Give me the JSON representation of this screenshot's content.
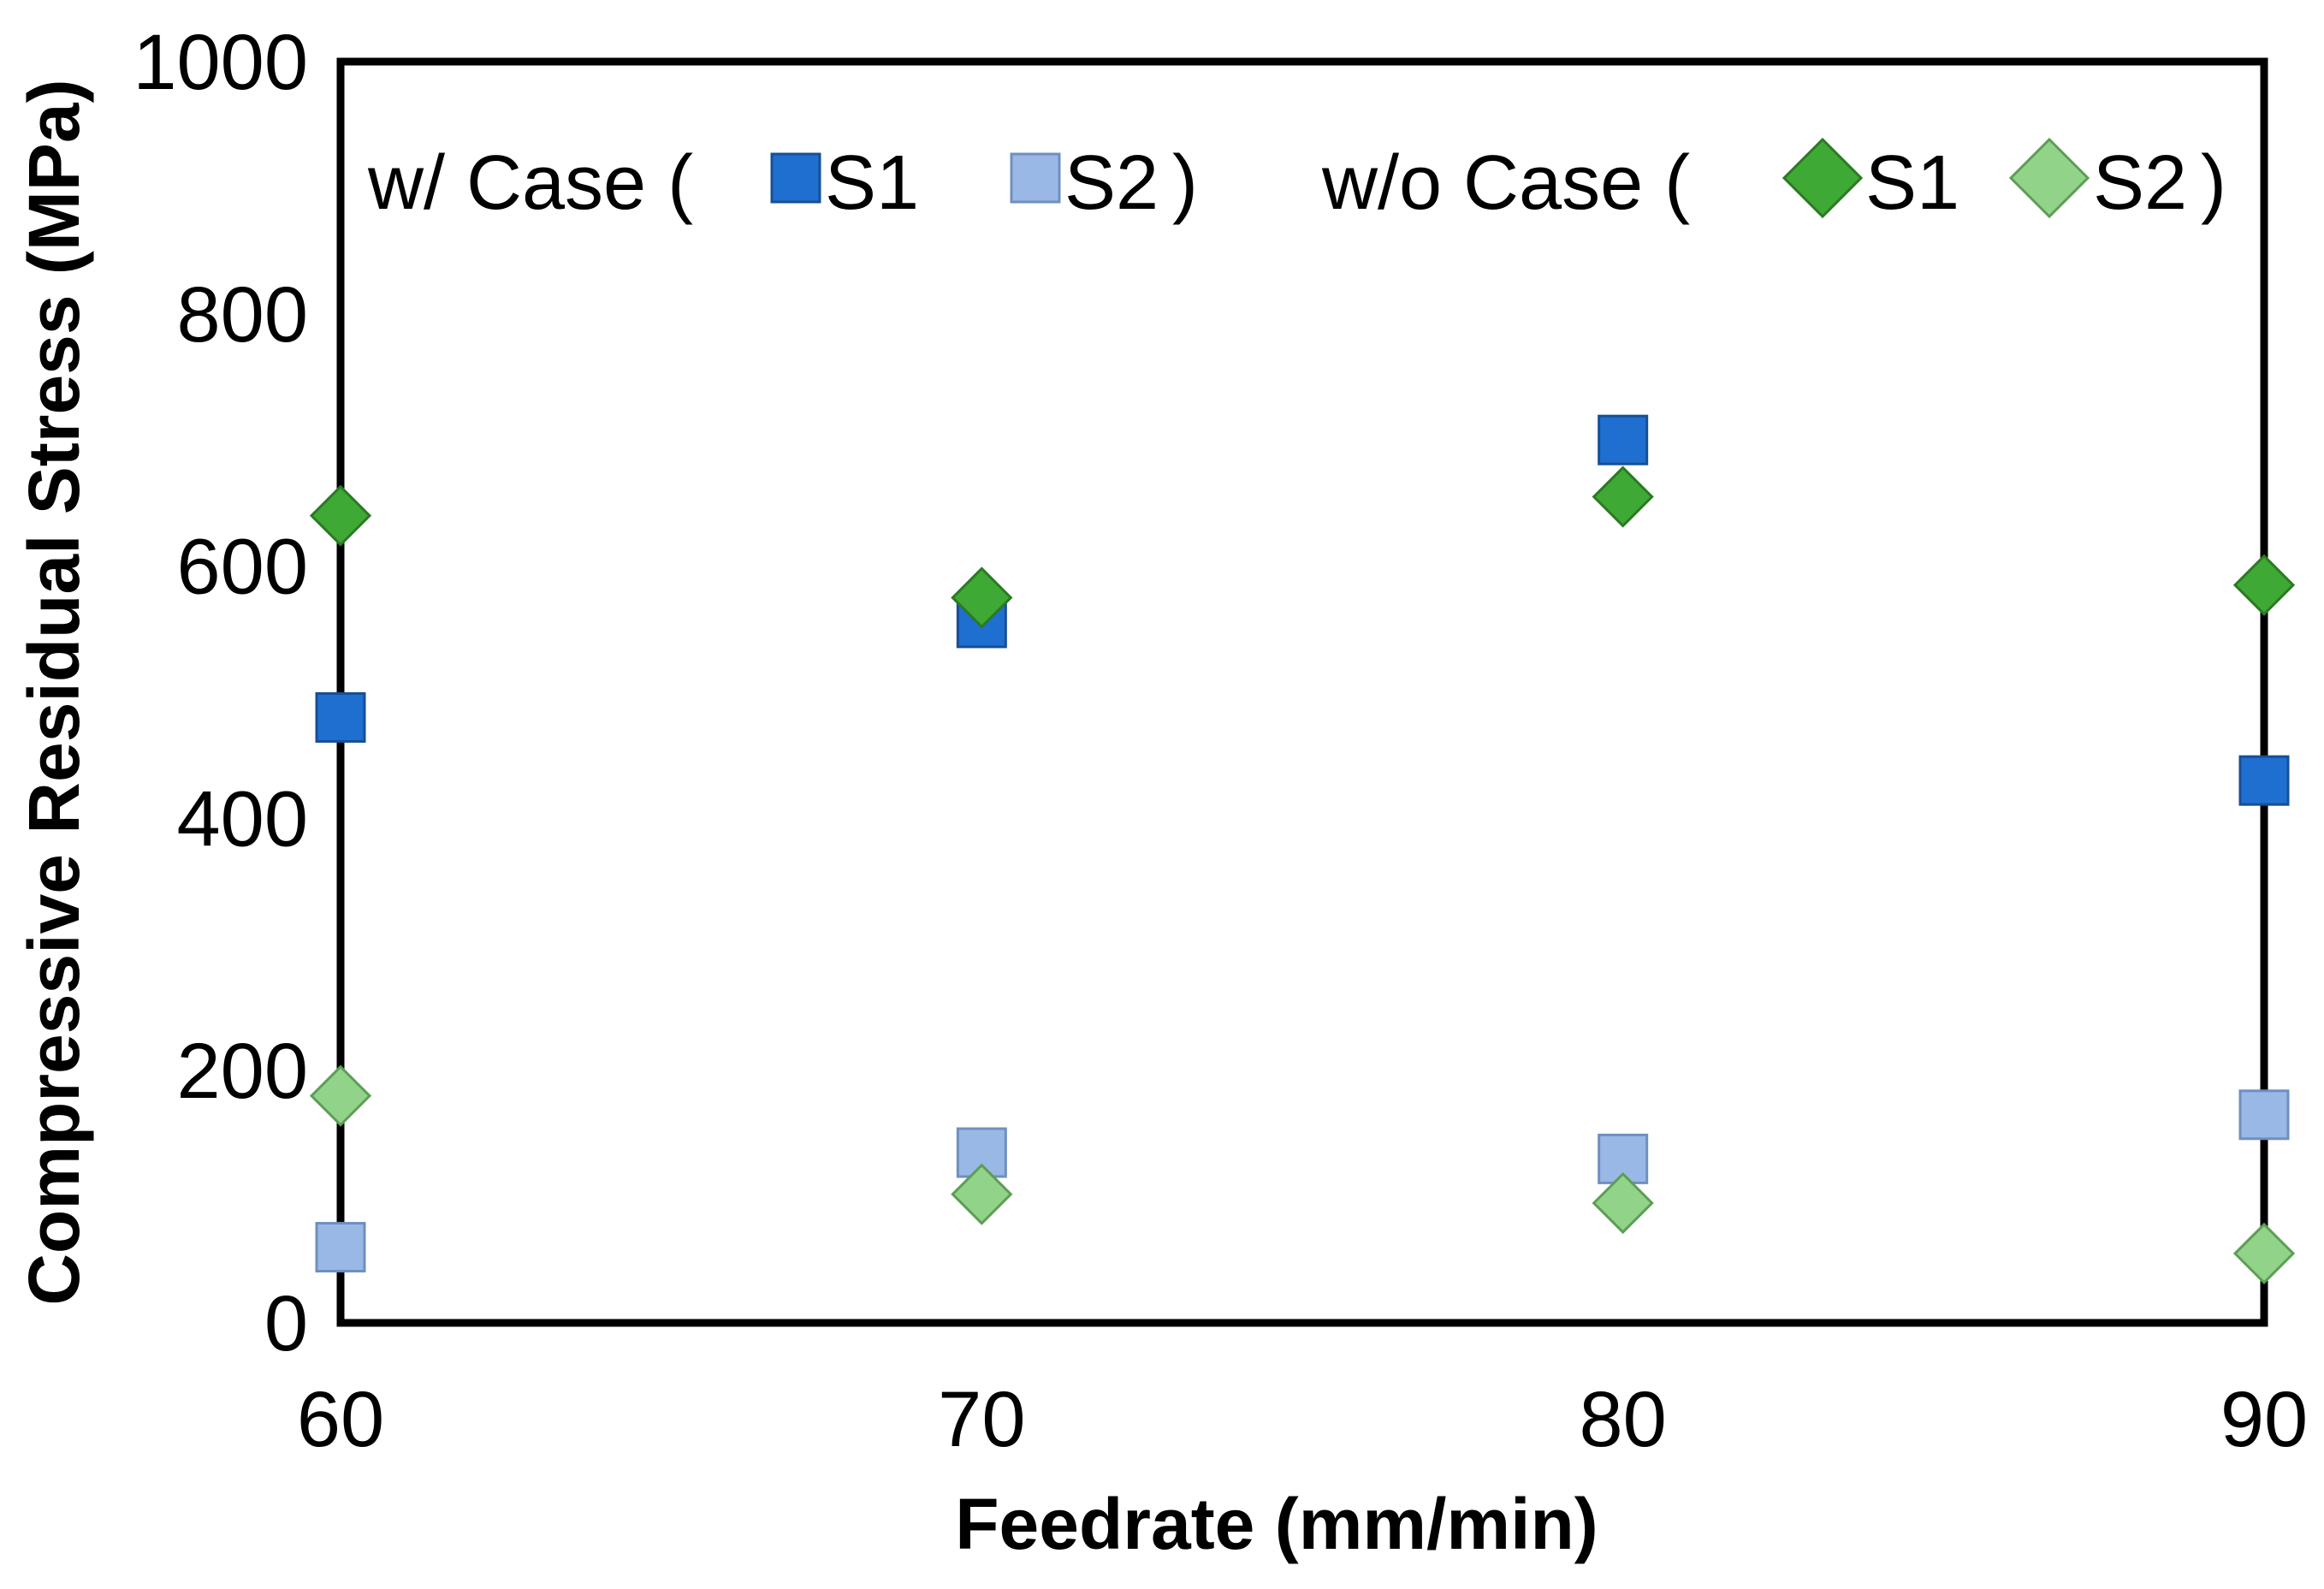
{
  "chart_data": {
    "type": "scatter",
    "title": "",
    "xlabel": "Feedrate (mm/min)",
    "ylabel": "Compressive Residual Stress (MPa)",
    "xlim": [
      60,
      90
    ],
    "ylim": [
      0,
      1000
    ],
    "xticks": [
      "60",
      "70",
      "80",
      "90"
    ],
    "yticks": [
      "0",
      "200",
      "400",
      "600",
      "800",
      "1000"
    ],
    "x": [
      60,
      70,
      80,
      90
    ],
    "grid": false,
    "legend_position": "top",
    "legend": {
      "group1_prefix": "w/ Case (",
      "group1_suffix": ")",
      "group2_prefix": "w/o  Case (",
      "group2_suffix": ")"
    },
    "series": [
      {
        "name": "S1",
        "group": "w/ Case",
        "marker": "square",
        "color": "#1f6fd0",
        "values": [
          480,
          555,
          700,
          430
        ]
      },
      {
        "name": "S2",
        "group": "w/ Case",
        "marker": "square",
        "color": "#9ab8e6",
        "values": [
          60,
          135,
          130,
          165
        ]
      },
      {
        "name": "S1",
        "group": "w/o Case",
        "marker": "diamond",
        "color": "#3fa935",
        "values": [
          640,
          575,
          655,
          585
        ]
      },
      {
        "name": "S2",
        "group": "w/o Case",
        "marker": "diamond",
        "color": "#92d38a",
        "values": [
          180,
          102,
          95,
          55
        ]
      }
    ]
  }
}
